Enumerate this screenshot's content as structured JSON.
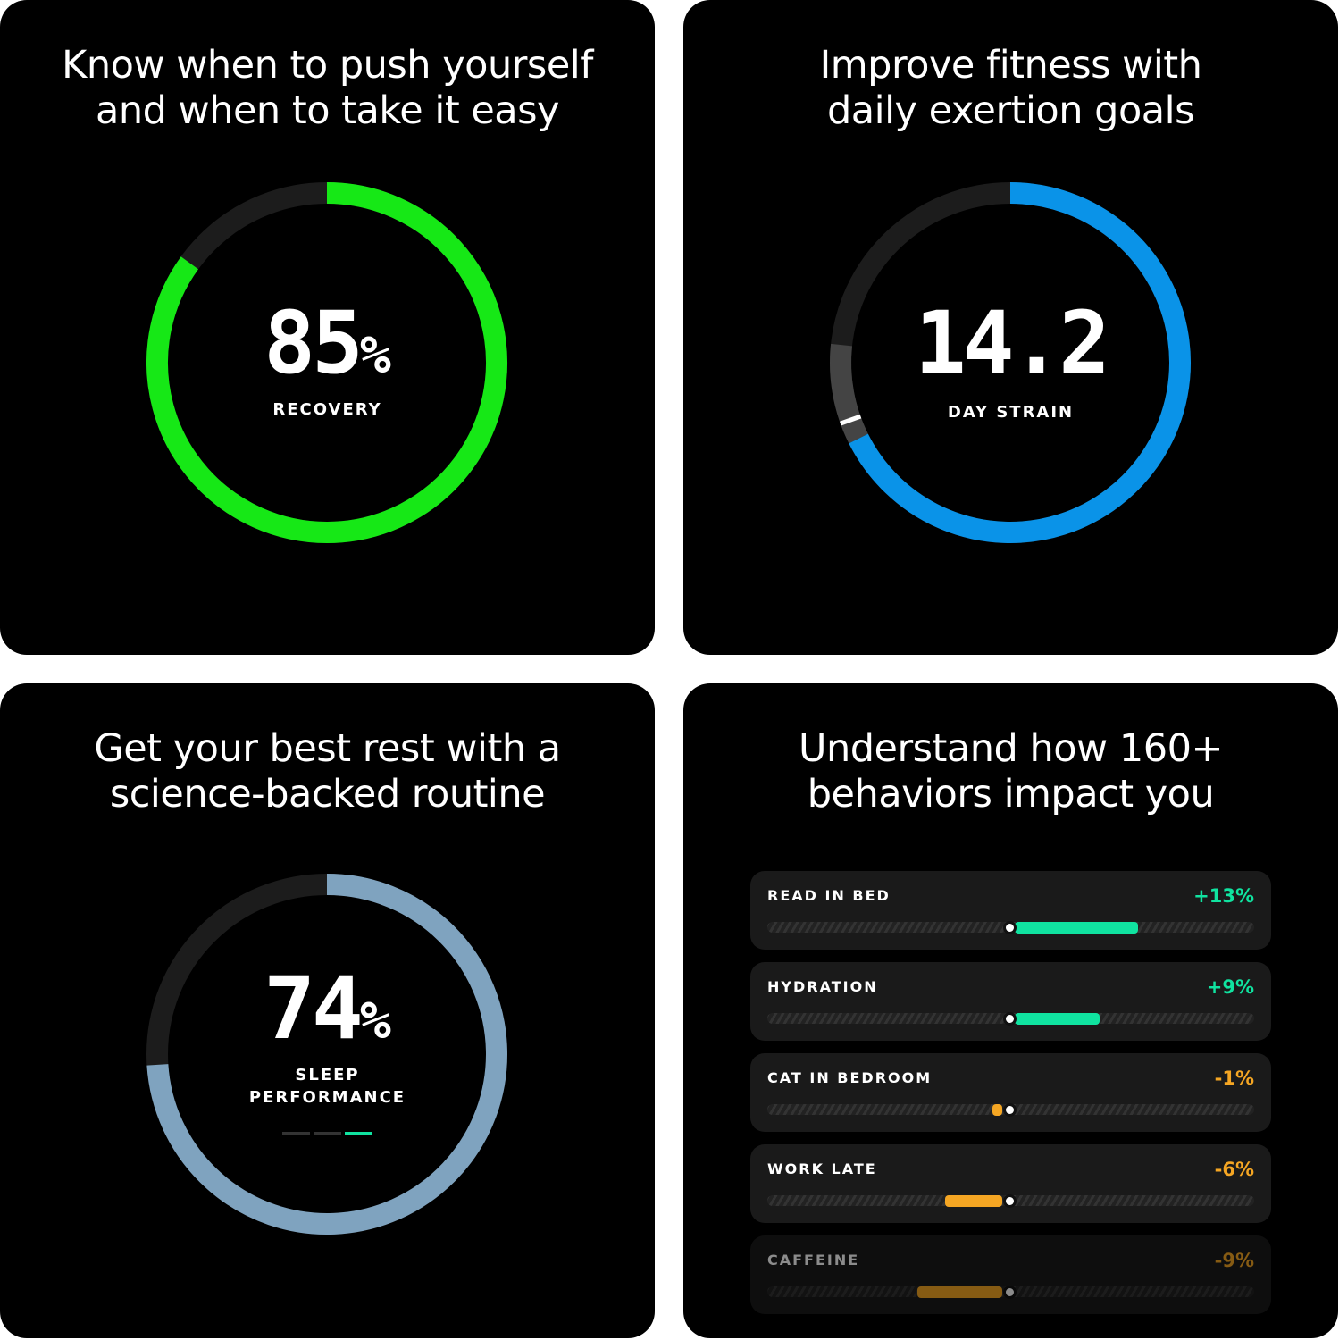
{
  "colors": {
    "recovery": "#16e816",
    "strain": "#0a93e8",
    "sleep": "#7fa3bf",
    "positive": "#10e3a0",
    "negative": "#f5a623",
    "track": "#1c1c1c"
  },
  "recovery": {
    "title_line1": "Know when to push yourself",
    "title_line2": "and when to take it easy",
    "value": "85",
    "unit": "%",
    "label": "RECOVERY",
    "percent": 85
  },
  "strain": {
    "title_line1": "Improve fitness with",
    "title_line2": "daily exertion goals",
    "value": "14.2",
    "label": "DAY STRAIN",
    "max": 21,
    "target_range": [
      14.2,
      16.1
    ],
    "marker": 14.6
  },
  "sleep": {
    "title_line1": "Get your best rest with a",
    "title_line2": "science-backed routine",
    "value": "74",
    "unit": "%",
    "label_line1": "SLEEP",
    "label_line2": "PERFORMANCE",
    "percent": 74
  },
  "behaviors": {
    "title_line1": "Understand how 160+",
    "title_line2": "behaviors impact you",
    "items": [
      {
        "name": "READ IN BED",
        "value": "+13%",
        "impact": 13
      },
      {
        "name": "HYDRATION",
        "value": "+9%",
        "impact": 9
      },
      {
        "name": "CAT IN BEDROOM",
        "value": "-1%",
        "impact": -1
      },
      {
        "name": "WORK LATE",
        "value": "-6%",
        "impact": -6
      },
      {
        "name": "CAFFEINE",
        "value": "-9%",
        "impact": -9
      }
    ]
  }
}
